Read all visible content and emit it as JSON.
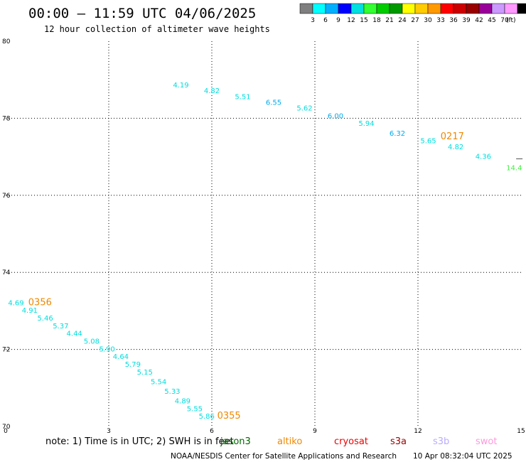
{
  "header": {
    "title": "00:00 – 11:59 UTC 04/06/2025",
    "subtitle": "12 hour collection of altimeter wave heights"
  },
  "colorbar": {
    "colors": [
      "#7f7f7f",
      "#00ffff",
      "#00b0ff",
      "#0000ff",
      "#00e0e0",
      "#33ff33",
      "#00cc00",
      "#009900",
      "#ffff00",
      "#ffcc00",
      "#ff9900",
      "#ff0000",
      "#cc0000",
      "#990000",
      "#990099",
      "#cc99ff",
      "#ff99ff",
      "#000000"
    ],
    "labels": [
      "3",
      "6",
      "9",
      "12",
      "15",
      "18",
      "21",
      "24",
      "27",
      "30",
      "33",
      "36",
      "39",
      "42",
      "45",
      "70",
      "(ft)"
    ]
  },
  "chart_data": {
    "type": "scatter",
    "xlim": [
      0,
      15
    ],
    "ylim": [
      70,
      80
    ],
    "xticks": [
      "0",
      "3",
      "6",
      "9",
      "12",
      "15"
    ],
    "yticks": [
      "70",
      "72",
      "74",
      "76",
      "78",
      "80"
    ],
    "grid": true,
    "points": [
      {
        "x": 5.1,
        "y": 78.8,
        "label": "4.19",
        "color": "#00dddd"
      },
      {
        "x": 6.0,
        "y": 78.65,
        "label": "4.82",
        "color": "#00dddd"
      },
      {
        "x": 6.9,
        "y": 78.5,
        "label": "5.51",
        "color": "#00dddd"
      },
      {
        "x": 7.8,
        "y": 78.35,
        "label": "6.55",
        "color": "#00aaee"
      },
      {
        "x": 8.7,
        "y": 78.2,
        "label": "5.62",
        "color": "#00dddd"
      },
      {
        "x": 9.6,
        "y": 78.0,
        "label": "6.00",
        "color": "#00aaee"
      },
      {
        "x": 10.5,
        "y": 77.8,
        "label": "5.94",
        "color": "#00dddd"
      },
      {
        "x": 11.4,
        "y": 77.55,
        "label": "6.32",
        "color": "#00aaee"
      },
      {
        "x": 12.3,
        "y": 77.35,
        "label": "5.65",
        "color": "#00dddd"
      },
      {
        "x": 13.1,
        "y": 77.2,
        "label": "4.82",
        "color": "#00dddd"
      },
      {
        "x": 13.9,
        "y": 76.95,
        "label": "4.36",
        "color": "#00dddd"
      },
      {
        "x": 14.8,
        "y": 76.65,
        "label": "14.4",
        "color": "#44ee44"
      },
      {
        "x": 0.3,
        "y": 73.15,
        "label": "4.69",
        "color": "#00dddd"
      },
      {
        "x": 0.7,
        "y": 72.95,
        "label": "4.91",
        "color": "#00dddd"
      },
      {
        "x": 1.15,
        "y": 72.75,
        "label": "5.46",
        "color": "#00dddd"
      },
      {
        "x": 1.6,
        "y": 72.55,
        "label": "5.37",
        "color": "#00dddd"
      },
      {
        "x": 2.0,
        "y": 72.35,
        "label": "4.44",
        "color": "#00dddd"
      },
      {
        "x": 2.5,
        "y": 72.15,
        "label": "5.08",
        "color": "#00dddd"
      },
      {
        "x": 2.95,
        "y": 71.95,
        "label": "5.90",
        "color": "#00dddd"
      },
      {
        "x": 3.35,
        "y": 71.75,
        "label": "4.64",
        "color": "#00dddd"
      },
      {
        "x": 3.7,
        "y": 71.55,
        "label": "5.79",
        "color": "#00dddd"
      },
      {
        "x": 4.05,
        "y": 71.35,
        "label": "5.15",
        "color": "#00dddd"
      },
      {
        "x": 4.45,
        "y": 71.1,
        "label": "5.54",
        "color": "#00dddd"
      },
      {
        "x": 4.85,
        "y": 70.85,
        "label": "5.33",
        "color": "#00dddd"
      },
      {
        "x": 5.15,
        "y": 70.6,
        "label": "4.89",
        "color": "#00dddd"
      },
      {
        "x": 5.5,
        "y": 70.4,
        "label": "5.55",
        "color": "#00dddd"
      },
      {
        "x": 5.85,
        "y": 70.2,
        "label": "5.86",
        "color": "#00dddd"
      }
    ],
    "pass_times": [
      {
        "x": 13.0,
        "y": 77.45,
        "label": "0217",
        "color": "#ee8800"
      },
      {
        "x": 1.0,
        "y": 73.15,
        "label": "0356",
        "color": "#ee8800"
      },
      {
        "x": 6.5,
        "y": 70.2,
        "label": "0355",
        "color": "#ee8800"
      }
    ],
    "edge_mark": {
      "x": 14.95,
      "y": 76.9,
      "label": "—",
      "color": "#000000"
    }
  },
  "note": {
    "text": "note: 1) Time is in UTC; 2) SWH is in feet"
  },
  "satellites": [
    {
      "name": "jason3",
      "color": "#006600"
    },
    {
      "name": "altiko",
      "color": "#ee8800"
    },
    {
      "name": "cryosat",
      "color": "#ee0000"
    },
    {
      "name": "s3a",
      "color": "#990000"
    },
    {
      "name": "s3b",
      "color": "#bbaaff"
    },
    {
      "name": "swot",
      "color": "#ff99dd"
    }
  ],
  "footer": {
    "left": "NOAA/NESDIS Center for Satellite Applications and Research",
    "right": "10 Apr 08:32:04 UTC 2025"
  }
}
